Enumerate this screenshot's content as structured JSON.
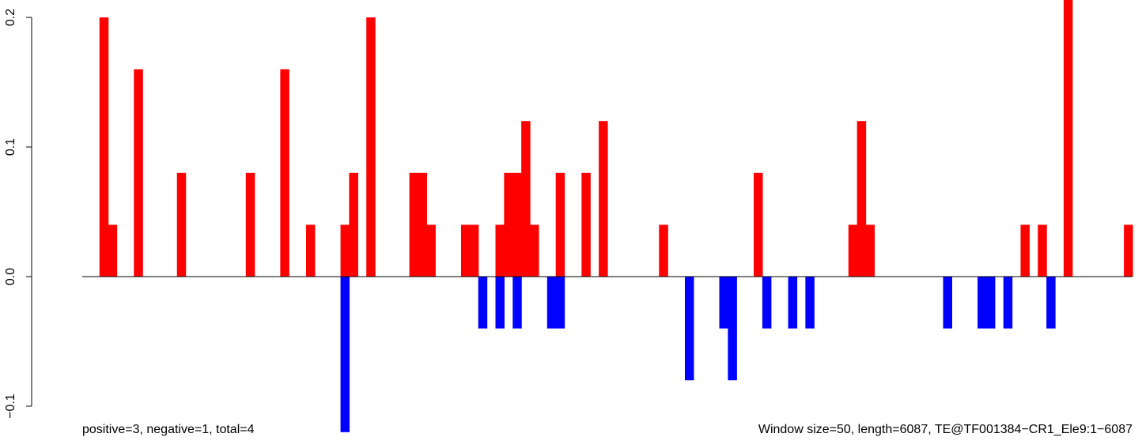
{
  "chart_data": {
    "type": "bar",
    "window_count": 122,
    "ylim": [
      -0.12,
      0.22
    ],
    "y_ticks": [
      {
        "value": -0.1,
        "label": "−0.1"
      },
      {
        "value": 0.0,
        "label": "0.0"
      },
      {
        "value": 0.1,
        "label": "0.1"
      },
      {
        "value": 0.2,
        "label": "0.2"
      }
    ],
    "positive_color": "#ff0000",
    "negative_color": "#0000ff",
    "positive_bars": [
      {
        "window": 3,
        "value": 0.2
      },
      {
        "window": 4,
        "value": 0.04
      },
      {
        "window": 7,
        "value": 0.16
      },
      {
        "window": 12,
        "value": 0.08
      },
      {
        "window": 20,
        "value": 0.08
      },
      {
        "window": 24,
        "value": 0.16
      },
      {
        "window": 27,
        "value": 0.04
      },
      {
        "window": 31,
        "value": 0.04
      },
      {
        "window": 32,
        "value": 0.08
      },
      {
        "window": 34,
        "value": 0.2
      },
      {
        "window": 39,
        "value": 0.08
      },
      {
        "window": 40,
        "value": 0.08
      },
      {
        "window": 41,
        "value": 0.04
      },
      {
        "window": 45,
        "value": 0.04
      },
      {
        "window": 46,
        "value": 0.04
      },
      {
        "window": 49,
        "value": 0.04
      },
      {
        "window": 50,
        "value": 0.08
      },
      {
        "window": 51,
        "value": 0.08
      },
      {
        "window": 52,
        "value": 0.12
      },
      {
        "window": 53,
        "value": 0.04
      },
      {
        "window": 56,
        "value": 0.08
      },
      {
        "window": 59,
        "value": 0.08
      },
      {
        "window": 61,
        "value": 0.12
      },
      {
        "window": 68,
        "value": 0.04
      },
      {
        "window": 79,
        "value": 0.08
      },
      {
        "window": 90,
        "value": 0.04
      },
      {
        "window": 91,
        "value": 0.12
      },
      {
        "window": 92,
        "value": 0.04
      },
      {
        "window": 110,
        "value": 0.04
      },
      {
        "window": 112,
        "value": 0.04
      },
      {
        "window": 115,
        "value": 0.22
      },
      {
        "window": 122,
        "value": 0.04
      }
    ],
    "negative_bars": [
      {
        "window": 31,
        "value": -0.12
      },
      {
        "window": 47,
        "value": -0.04
      },
      {
        "window": 49,
        "value": -0.04
      },
      {
        "window": 51,
        "value": -0.04
      },
      {
        "window": 55,
        "value": -0.04
      },
      {
        "window": 56,
        "value": -0.04
      },
      {
        "window": 71,
        "value": -0.08
      },
      {
        "window": 75,
        "value": -0.04
      },
      {
        "window": 76,
        "value": -0.08
      },
      {
        "window": 80,
        "value": -0.04
      },
      {
        "window": 83,
        "value": -0.04
      },
      {
        "window": 85,
        "value": -0.04
      },
      {
        "window": 101,
        "value": -0.04
      },
      {
        "window": 105,
        "value": -0.04
      },
      {
        "window": 106,
        "value": -0.04
      },
      {
        "window": 108,
        "value": -0.04
      },
      {
        "window": 113,
        "value": -0.04
      }
    ],
    "footer_left": "positive=3, negative=1, total=4",
    "footer_right": "Window size=50, length=6087, TE@TF001384−CR1_Ele9:1−6087"
  }
}
